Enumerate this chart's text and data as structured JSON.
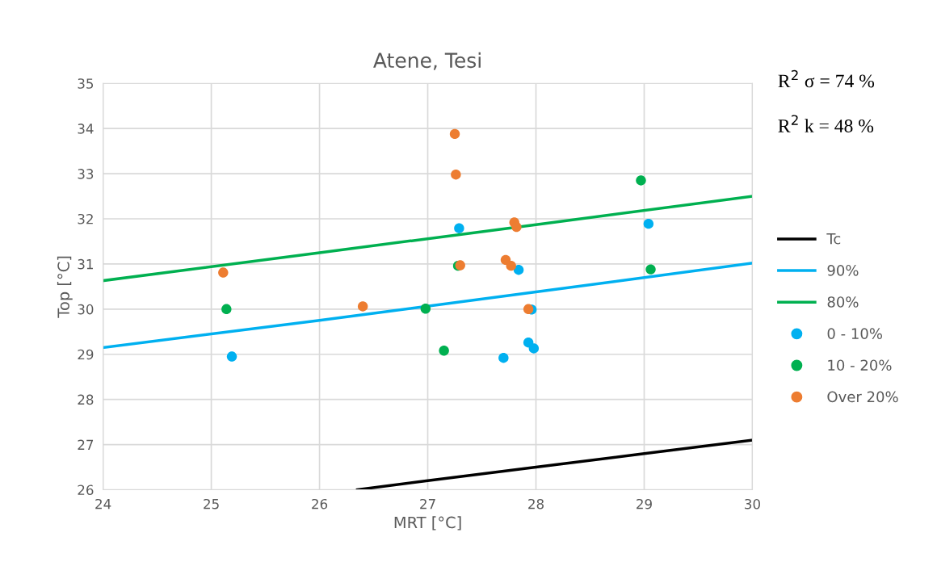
{
  "chart_data": {
    "type": "scatter",
    "title": "Atene, Tesi",
    "xlabel": "MRT [°C]",
    "ylabel": "Top [°C]",
    "xlim": [
      24,
      30
    ],
    "xticks": [
      24,
      25,
      26,
      27,
      28,
      29,
      30
    ],
    "ylim": [
      26,
      35
    ],
    "yticks": [
      26,
      27,
      28,
      29,
      30,
      31,
      32,
      33,
      34,
      35
    ],
    "grid": true,
    "legend": "right",
    "annotations": [
      "R$^{2}$ σ = 74 %",
      "R$^{2}$ k = 48 %"
    ],
    "series": [
      {
        "name": "Tc",
        "type": "line",
        "marker": "none",
        "color": "#000000",
        "x": [
          26.35,
          27,
          28,
          29,
          30
        ],
        "values": [
          26.0,
          26.2,
          26.5,
          26.8,
          27.1
        ]
      },
      {
        "name": "90%",
        "type": "line",
        "marker": "none",
        "color": "#00b0f0",
        "x": [
          24,
          26,
          28,
          30
        ],
        "values": [
          29.15,
          29.75,
          30.38,
          31.02
        ]
      },
      {
        "name": "80%",
        "type": "line",
        "marker": "none",
        "color": "#00b050",
        "x": [
          24,
          26,
          28,
          30
        ],
        "values": [
          30.63,
          31.25,
          31.87,
          32.5
        ]
      },
      {
        "name": "0 - 10%",
        "marker": "circle",
        "color": "#00b0f0",
        "x": [
          25.19,
          27.29,
          27.84,
          27.96,
          27.93,
          27.98,
          27.7,
          29.04
        ],
        "values": [
          28.95,
          31.79,
          30.87,
          29.99,
          29.26,
          29.13,
          28.92,
          31.89
        ]
      },
      {
        "name": "10 - 20%",
        "marker": "circle",
        "color": "#00b050",
        "x": [
          25.14,
          26.98,
          27.28,
          27.15,
          28.97,
          29.06
        ],
        "values": [
          30.0,
          30.01,
          30.96,
          29.08,
          32.85,
          30.88
        ]
      },
      {
        "name": "Over 20%",
        "marker": "circle",
        "color": "#ed7d31",
        "x": [
          25.11,
          26.4,
          27.25,
          27.26,
          27.3,
          27.72,
          27.77,
          27.8,
          27.82,
          27.93
        ],
        "values": [
          30.81,
          30.06,
          33.88,
          32.98,
          30.97,
          31.09,
          30.96,
          31.92,
          31.82,
          30.0
        ]
      }
    ]
  }
}
